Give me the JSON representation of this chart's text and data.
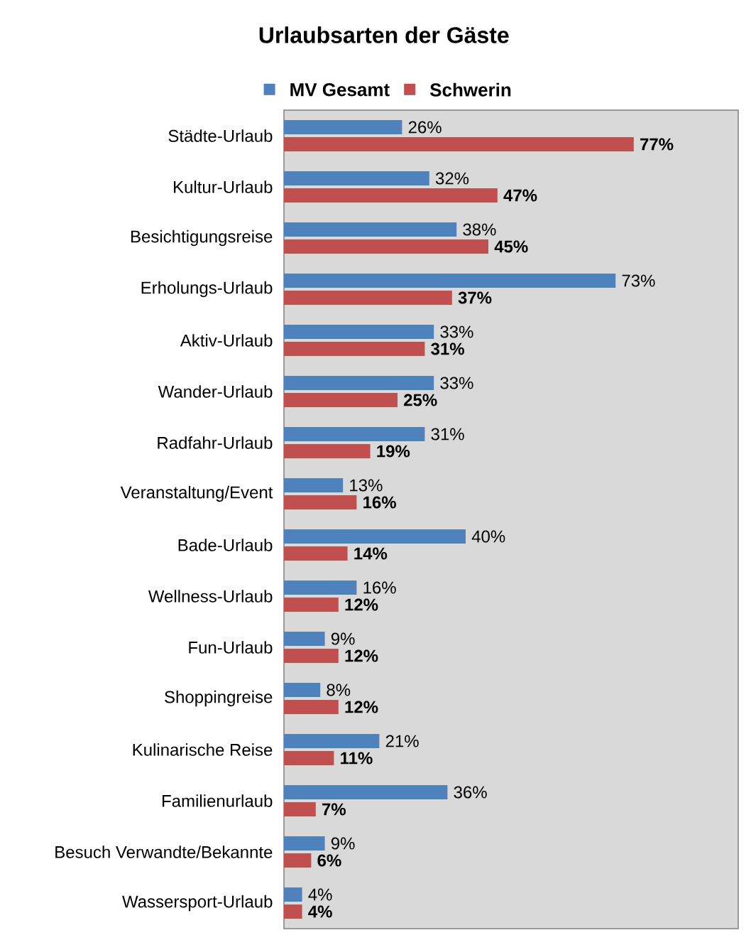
{
  "chart_data": {
    "type": "bar",
    "orientation": "horizontal",
    "title": "Urlaubsarten der Gäste",
    "legend": "top",
    "data_labels": true,
    "xlim": [
      0,
      100
    ],
    "categories": [
      "Städte-Urlaub",
      "Kultur-Urlaub",
      "Besichtigungsreise",
      "Erholungs-Urlaub",
      "Aktiv-Urlaub",
      "Wander-Urlaub",
      "Radfahr-Urlaub",
      "Veranstaltung/Event",
      "Bade-Urlaub",
      "Wellness-Urlaub",
      "Fun-Urlaub",
      "Shoppingreise",
      "Kulinarische Reise",
      "Familienurlaub",
      "Besuch Verwandte/Bekannte",
      "Wassersport-Urlaub"
    ],
    "series": [
      {
        "name": "MV Gesamt",
        "color": "#4f81bd",
        "values": [
          26,
          32,
          38,
          73,
          33,
          33,
          31,
          13,
          40,
          16,
          9,
          8,
          21,
          36,
          9,
          4
        ],
        "value_labels": [
          "26%",
          "32%",
          "38%",
          "73%",
          "33%",
          "33%",
          "31%",
          "13%",
          "40%",
          "16%",
          "9%",
          "8%",
          "21%",
          "36%",
          "9%",
          "4%"
        ]
      },
      {
        "name": "Schwerin",
        "color": "#c0504d",
        "values": [
          77,
          47,
          45,
          37,
          31,
          25,
          19,
          16,
          14,
          12,
          12,
          12,
          11,
          7,
          6,
          4
        ],
        "value_labels": [
          "77%",
          "47%",
          "45%",
          "37%",
          "31%",
          "25%",
          "19%",
          "16%",
          "14%",
          "12%",
          "12%",
          "12%",
          "11%",
          "7%",
          "6%",
          "4%"
        ]
      }
    ]
  }
}
